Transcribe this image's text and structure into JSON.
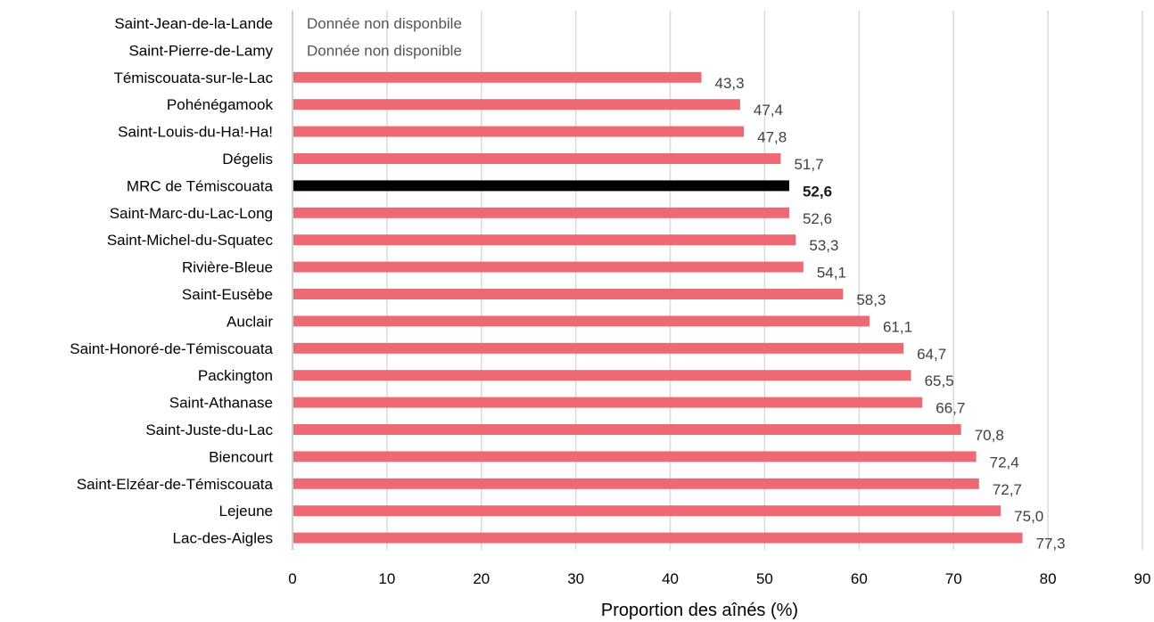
{
  "chart_data": {
    "type": "bar",
    "orientation": "horizontal",
    "xlabel": "Proportion des aînés (%)",
    "xlim": [
      0,
      90
    ],
    "xticks": [
      0,
      10,
      20,
      30,
      40,
      50,
      60,
      70,
      80,
      90
    ],
    "grid": "vertical",
    "colors": {
      "bar": "#ed6a75",
      "highlight": "#000000",
      "grid": "#d9d9d9"
    },
    "highlight_category": "MRC de Témiscouata",
    "categories": [
      "Saint-Jean-de-la-Lande",
      "Saint-Pierre-de-Lamy",
      "Témiscouata-sur-le-Lac",
      "Pohénégamook",
      "Saint-Louis-du-Ha!-Ha!",
      "Dégelis",
      "MRC de Témiscouata",
      "Saint-Marc-du-Lac-Long",
      "Saint-Michel-du-Squatec",
      "Rivière-Bleue",
      "Saint-Eusèbe",
      "Auclair",
      "Saint-Honoré-de-Témiscouata",
      "Packington",
      "Saint-Athanase",
      "Saint-Juste-du-Lac",
      "Biencourt",
      "Saint-Elzéar-de-Témiscouata",
      "Lejeune",
      "Lac-des-Aigles"
    ],
    "values": [
      null,
      null,
      43.3,
      47.4,
      47.8,
      51.7,
      52.6,
      52.6,
      53.3,
      54.1,
      58.3,
      61.1,
      64.7,
      65.5,
      66.7,
      70.8,
      72.4,
      72.7,
      75.0,
      77.3
    ],
    "value_labels": [
      "",
      "",
      "43,3",
      "47,4",
      "47,8",
      "51,7",
      "52,6",
      "52,6",
      "53,3",
      "54,1",
      "58,3",
      "61,1",
      "64,7",
      "65,5",
      "66,7",
      "70,8",
      "72,4",
      "72,7",
      "75,0",
      "77,3"
    ],
    "missing_notes": [
      "Donnée non disponbile",
      "Donnée non disponible",
      "",
      "",
      "",
      "",
      "",
      "",
      "",
      "",
      "",
      "",
      "",
      "",
      "",
      "",
      "",
      "",
      "",
      ""
    ]
  }
}
